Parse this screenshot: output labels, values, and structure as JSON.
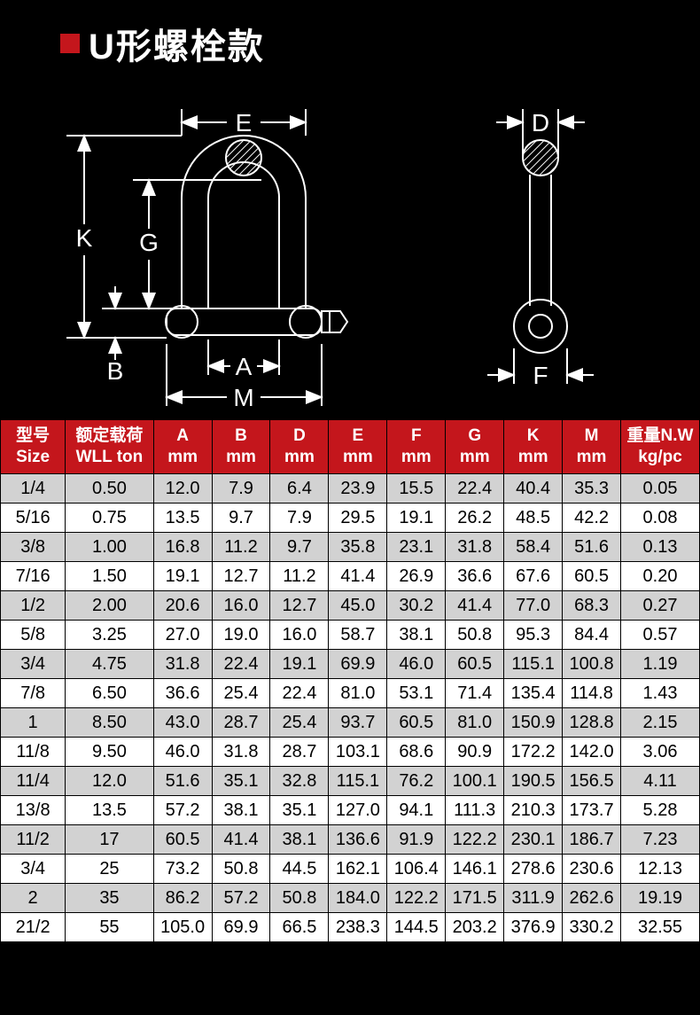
{
  "header": {
    "title": "U形螺栓款",
    "accent_color": "#c4161c"
  },
  "diagram": {
    "labels": {
      "E": "E",
      "K": "K",
      "G": "G",
      "B": "B",
      "A": "A",
      "M": "M",
      "D": "D",
      "F": "F"
    },
    "stroke_color": "#ffffff",
    "stroke_width": 2,
    "label_fontsize": 28
  },
  "table": {
    "header_bg": "#c4161c",
    "header_fg": "#ffffff",
    "row_odd_bg": "#d2d2d2",
    "row_even_bg": "#ffffff",
    "border_color": "#000000",
    "columns": [
      {
        "line1": "型号",
        "line2": "Size"
      },
      {
        "line1": "额定载荷",
        "line2": "WLL ton"
      },
      {
        "line1": "A",
        "line2": "mm"
      },
      {
        "line1": "B",
        "line2": "mm"
      },
      {
        "line1": "D",
        "line2": "mm"
      },
      {
        "line1": "E",
        "line2": "mm"
      },
      {
        "line1": "F",
        "line2": "mm"
      },
      {
        "line1": "G",
        "line2": "mm"
      },
      {
        "line1": "K",
        "line2": "mm"
      },
      {
        "line1": "M",
        "line2": "mm"
      },
      {
        "line1": "重量N.W",
        "line2": "kg/pc"
      }
    ],
    "rows": [
      [
        "1/4",
        "0.50",
        "12.0",
        "7.9",
        "6.4",
        "23.9",
        "15.5",
        "22.4",
        "40.4",
        "35.3",
        "0.05"
      ],
      [
        "5/16",
        "0.75",
        "13.5",
        "9.7",
        "7.9",
        "29.5",
        "19.1",
        "26.2",
        "48.5",
        "42.2",
        "0.08"
      ],
      [
        "3/8",
        "1.00",
        "16.8",
        "11.2",
        "9.7",
        "35.8",
        "23.1",
        "31.8",
        "58.4",
        "51.6",
        "0.13"
      ],
      [
        "7/16",
        "1.50",
        "19.1",
        "12.7",
        "11.2",
        "41.4",
        "26.9",
        "36.6",
        "67.6",
        "60.5",
        "0.20"
      ],
      [
        "1/2",
        "2.00",
        "20.6",
        "16.0",
        "12.7",
        "45.0",
        "30.2",
        "41.4",
        "77.0",
        "68.3",
        "0.27"
      ],
      [
        "5/8",
        "3.25",
        "27.0",
        "19.0",
        "16.0",
        "58.7",
        "38.1",
        "50.8",
        "95.3",
        "84.4",
        "0.57"
      ],
      [
        "3/4",
        "4.75",
        "31.8",
        "22.4",
        "19.1",
        "69.9",
        "46.0",
        "60.5",
        "115.1",
        "100.8",
        "1.19"
      ],
      [
        "7/8",
        "6.50",
        "36.6",
        "25.4",
        "22.4",
        "81.0",
        "53.1",
        "71.4",
        "135.4",
        "114.8",
        "1.43"
      ],
      [
        "1",
        "8.50",
        "43.0",
        "28.7",
        "25.4",
        "93.7",
        "60.5",
        "81.0",
        "150.9",
        "128.8",
        "2.15"
      ],
      [
        "11/8",
        "9.50",
        "46.0",
        "31.8",
        "28.7",
        "103.1",
        "68.6",
        "90.9",
        "172.2",
        "142.0",
        "3.06"
      ],
      [
        "11/4",
        "12.0",
        "51.6",
        "35.1",
        "32.8",
        "115.1",
        "76.2",
        "100.1",
        "190.5",
        "156.5",
        "4.11"
      ],
      [
        "13/8",
        "13.5",
        "57.2",
        "38.1",
        "35.1",
        "127.0",
        "94.1",
        "111.3",
        "210.3",
        "173.7",
        "5.28"
      ],
      [
        "11/2",
        "17",
        "60.5",
        "41.4",
        "38.1",
        "136.6",
        "91.9",
        "122.2",
        "230.1",
        "186.7",
        "7.23"
      ],
      [
        "3/4",
        "25",
        "73.2",
        "50.8",
        "44.5",
        "162.1",
        "106.4",
        "146.1",
        "278.6",
        "230.6",
        "12.13"
      ],
      [
        "2",
        "35",
        "86.2",
        "57.2",
        "50.8",
        "184.0",
        "122.2",
        "171.5",
        "311.9",
        "262.6",
        "19.19"
      ],
      [
        "21/2",
        "55",
        "105.0",
        "69.9",
        "66.5",
        "238.3",
        "144.5",
        "203.2",
        "376.9",
        "330.2",
        "32.55"
      ]
    ]
  }
}
